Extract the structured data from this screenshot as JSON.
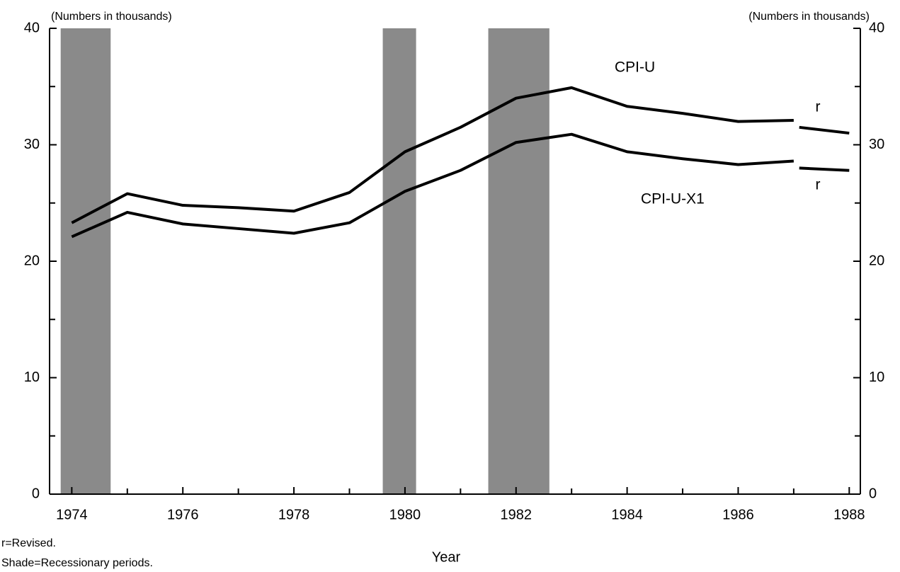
{
  "chart_data": {
    "type": "line",
    "left_axis_label": "(Numbers in thousands)",
    "right_axis_label": "(Numbers in thousands)",
    "x_label": "Year",
    "notes": [
      "r=Revised.",
      "Shade=Recessionary periods."
    ],
    "xlim": [
      1973.6,
      1988.2
    ],
    "xticks": [
      1974,
      1976,
      1978,
      1980,
      1982,
      1984,
      1986,
      1988
    ],
    "xminorticks": [
      1975,
      1977,
      1979,
      1981,
      1983,
      1985,
      1987
    ],
    "ylim": [
      0,
      40
    ],
    "yticks": [
      0,
      10,
      20,
      30,
      40
    ],
    "yminorticks": [
      5,
      15,
      25,
      35
    ],
    "y2lim": [
      0,
      40
    ],
    "y2ticks": [
      0,
      10,
      20,
      30,
      40
    ],
    "shades": [
      [
        1973.8,
        1974.7
      ],
      [
        1979.6,
        1980.2
      ],
      [
        1981.5,
        1982.6
      ]
    ],
    "shade_color": "#8a8a8a",
    "series": [
      {
        "name": "CPI-U",
        "color": "#000000",
        "x": [
          1974,
          1975,
          1976,
          1977,
          1978,
          1979,
          1980,
          1981,
          1982,
          1983,
          1984,
          1985,
          1986,
          1987
        ],
        "values": [
          23.3,
          25.8,
          24.8,
          24.6,
          24.3,
          25.9,
          29.4,
          31.5,
          34.0,
          34.9,
          33.3,
          32.7,
          32.0,
          32.1
        ]
      },
      {
        "name": "r",
        "color": "#000000",
        "x": [
          1987.1,
          1988
        ],
        "values": [
          31.5,
          31.0
        ]
      },
      {
        "name": "CPI-U-X1",
        "color": "#000000",
        "x": [
          1974,
          1975,
          1976,
          1977,
          1978,
          1979,
          1980,
          1981,
          1982,
          1983,
          1984,
          1985,
          1986,
          1987
        ],
        "values": [
          22.1,
          24.2,
          23.2,
          22.8,
          22.4,
          23.3,
          26.0,
          27.8,
          30.2,
          30.9,
          29.4,
          28.8,
          28.3,
          28.6
        ]
      },
      {
        "name": "r",
        "color": "#000000",
        "x": [
          1987.1,
          1988
        ],
        "values": [
          28.0,
          27.8
        ]
      }
    ]
  }
}
